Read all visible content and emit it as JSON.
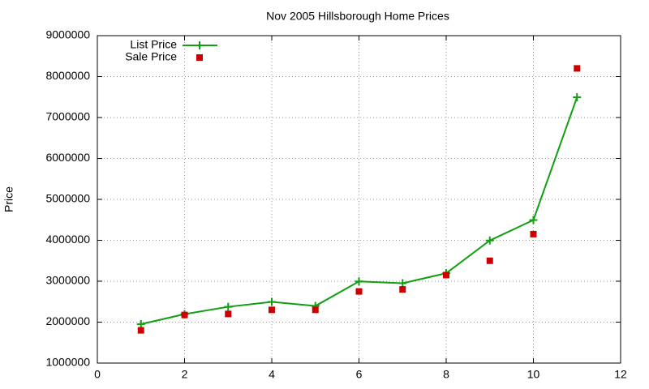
{
  "chart_data": {
    "type": "line",
    "title": "Nov 2005 Hillsborough Home Prices",
    "y_label": "Price",
    "x": [
      1,
      2,
      3,
      4,
      5,
      6,
      7,
      8,
      9,
      10,
      11
    ],
    "series": [
      {
        "name": "List Price",
        "color": "#109f10",
        "marker": "plus",
        "line": true,
        "values": [
          1950000,
          2195000,
          2375000,
          2495000,
          2395000,
          2995000,
          2950000,
          3195000,
          3995000,
          4495000,
          7495000
        ]
      },
      {
        "name": "Sale Price",
        "color": "#cc0000",
        "marker": "square",
        "line": false,
        "values": [
          1800000,
          2175000,
          2200000,
          2300000,
          2300000,
          2750000,
          2800000,
          3150000,
          3500000,
          4150000,
          8200000
        ]
      }
    ],
    "xlim": [
      0,
      12
    ],
    "xticks": [
      0,
      2,
      4,
      6,
      8,
      10,
      12
    ],
    "ylim": [
      1000000,
      9000000
    ],
    "yticks": [
      1000000,
      2000000,
      3000000,
      4000000,
      5000000,
      6000000,
      7000000,
      8000000,
      9000000
    ],
    "grid": true,
    "legend": "top-left"
  }
}
